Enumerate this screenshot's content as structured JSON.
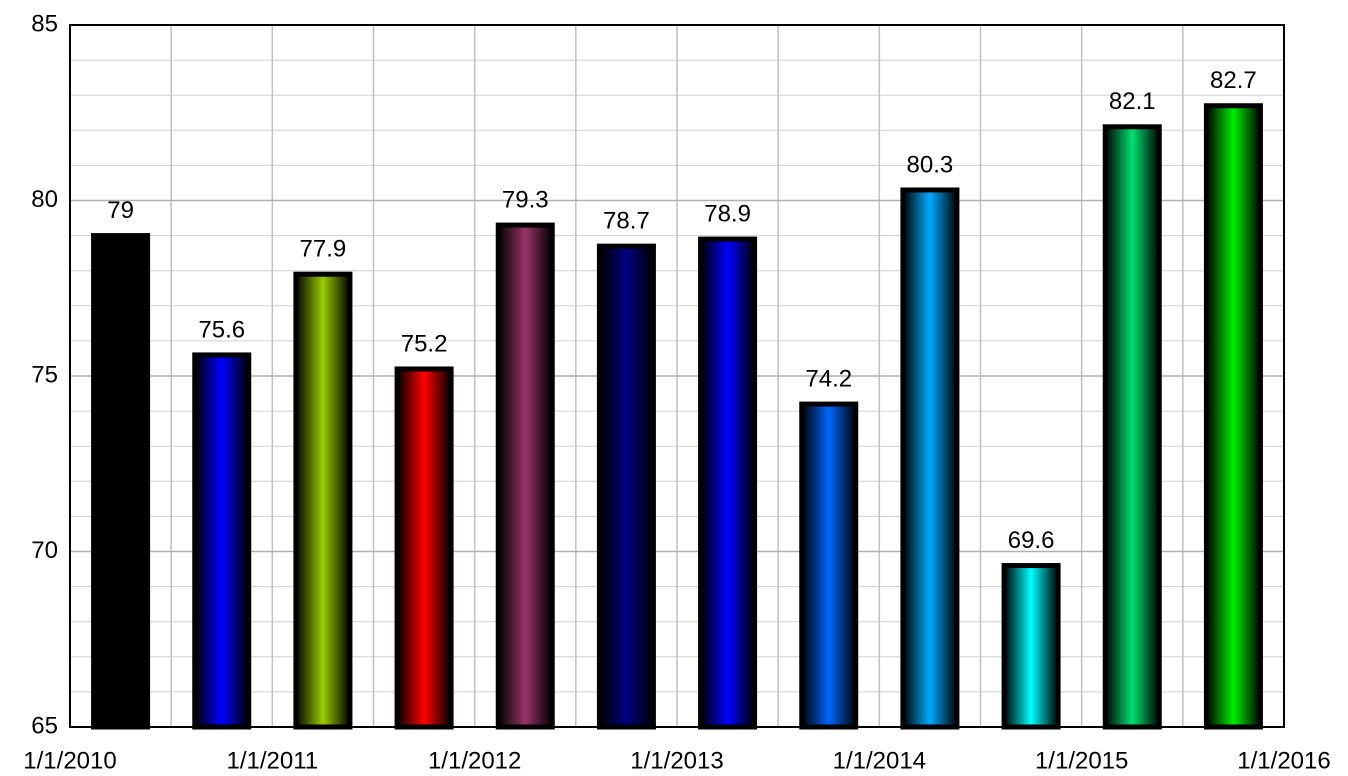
{
  "chart_data": {
    "type": "bar",
    "values": [
      79,
      75.6,
      77.9,
      75.2,
      79.3,
      78.7,
      78.9,
      74.2,
      80.3,
      69.6,
      82.1,
      82.7
    ],
    "colors": [
      "#000000",
      "#0000ff",
      "#99cc00",
      "#ff0000",
      "#993366",
      "#000080",
      "#0000ff",
      "#0066ff",
      "#00aaff",
      "#00ffff",
      "#00e070",
      "#00ee00"
    ],
    "xticks": [
      "1/1/2010",
      "1/1/2011",
      "1/1/2012",
      "1/1/2013",
      "1/1/2014",
      "1/1/2015",
      "1/1/2016"
    ],
    "ylim": [
      65,
      85
    ],
    "yticks": [
      65,
      70,
      75,
      80,
      85
    ],
    "y_minor_ticks": [
      66,
      67,
      68,
      69,
      71,
      72,
      73,
      74,
      76,
      77,
      78,
      79,
      81,
      82,
      83,
      84
    ],
    "grid": true
  }
}
